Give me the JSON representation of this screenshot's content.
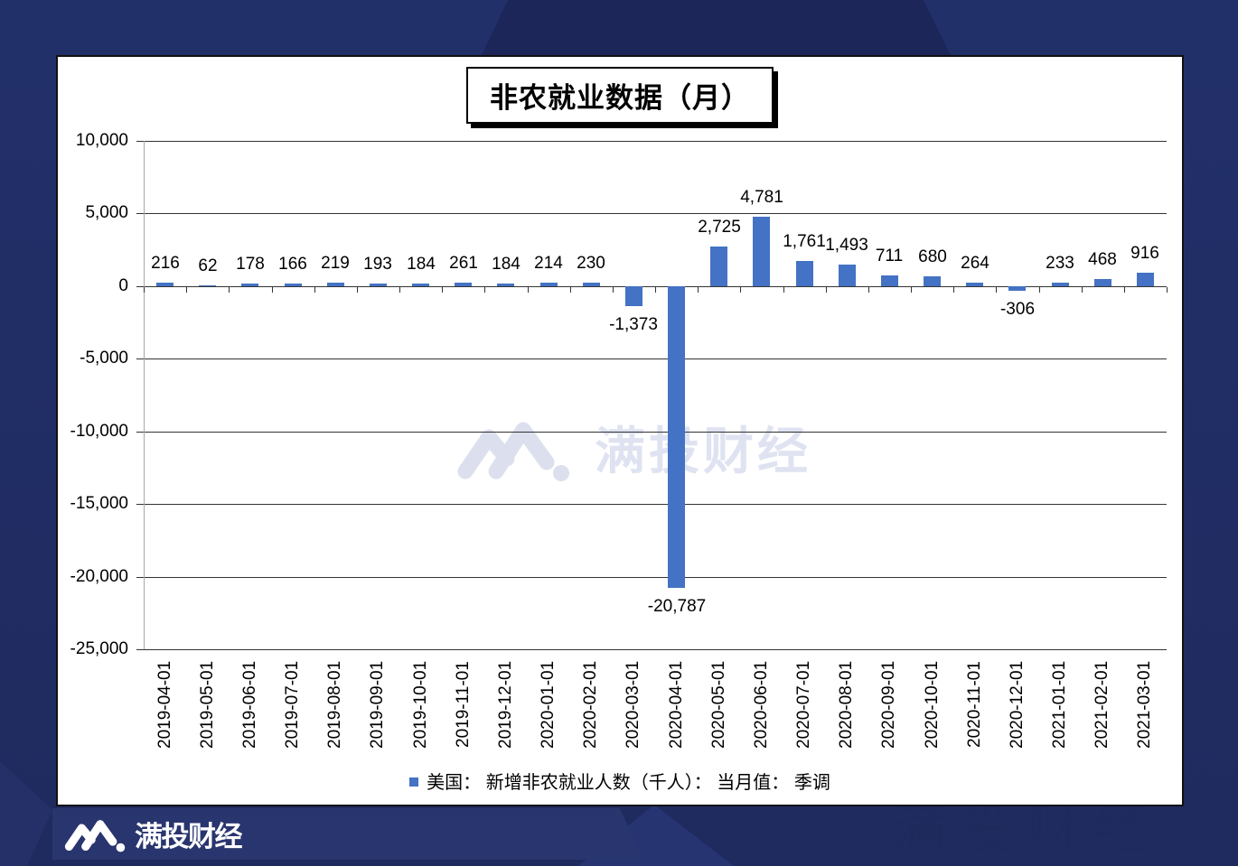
{
  "chart_data": {
    "type": "bar",
    "title": "非农就业数据（月）",
    "categories": [
      "2019-04-01",
      "2019-05-01",
      "2019-06-01",
      "2019-07-01",
      "2019-08-01",
      "2019-09-01",
      "2019-10-01",
      "2019-11-01",
      "2019-12-01",
      "2020-01-01",
      "2020-02-01",
      "2020-03-01",
      "2020-04-01",
      "2020-05-01",
      "2020-06-01",
      "2020-07-01",
      "2020-08-01",
      "2020-09-01",
      "2020-10-01",
      "2020-11-01",
      "2020-12-01",
      "2021-01-01",
      "2021-02-01",
      "2021-03-01"
    ],
    "values": [
      216,
      62,
      178,
      166,
      219,
      193,
      184,
      261,
      184,
      214,
      230,
      -1373,
      -20787,
      2725,
      4781,
      1761,
      1493,
      711,
      680,
      264,
      -306,
      233,
      468,
      916
    ],
    "ylim": [
      -25000,
      10000
    ],
    "ytick_step": 5000,
    "legend": "美国： 新增非农就业人数（千人）： 当月值： 季调",
    "bar_color": "#4472c4",
    "grid": "on",
    "xlabel": "",
    "ylabel": ""
  },
  "brand": {
    "watermark_text": "满投财经",
    "footer_text": "满投财经"
  },
  "colors": {
    "background": "#202e65",
    "bar": "#4472c4",
    "watermark": "#dfe3f1"
  }
}
